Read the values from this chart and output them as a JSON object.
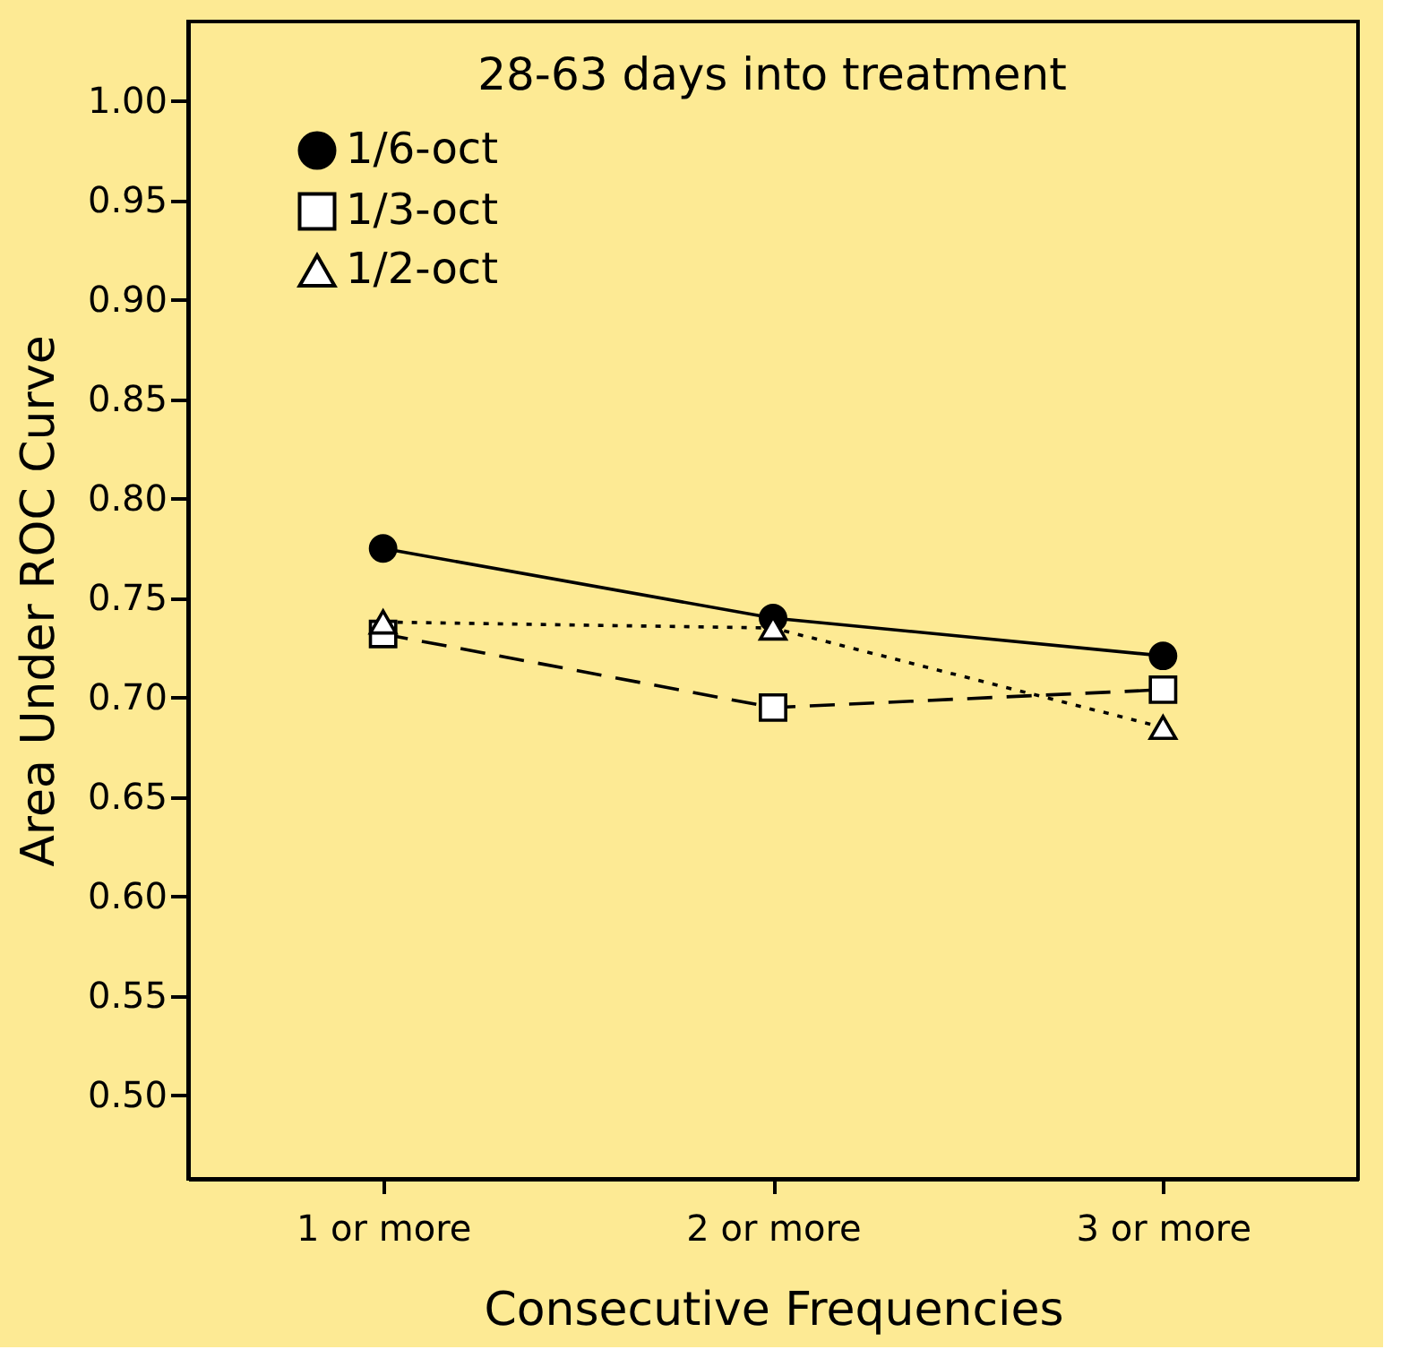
{
  "chart_data": {
    "type": "line",
    "title": "28-63 days into treatment",
    "xlabel": "Consecutive Frequencies",
    "ylabel": "Area Under ROC Curve",
    "categories": [
      "1 or more",
      "2 or more",
      "3 or more"
    ],
    "series": [
      {
        "name": "1/6-oct",
        "color": "#000000",
        "values": [
          0.775,
          0.74,
          0.721
        ],
        "marker": "circle",
        "line_style": "solid"
      },
      {
        "name": "1/3-oct",
        "color": "#000000",
        "values": [
          0.732,
          0.695,
          0.704
        ],
        "marker": "square",
        "line_style": "dashed"
      },
      {
        "name": "1/2-oct",
        "color": "#000000",
        "values": [
          0.738,
          0.735,
          0.685
        ],
        "marker": "triangle",
        "line_style": "dotted"
      }
    ],
    "ylim": [
      0.458,
      1.04
    ],
    "yticks": [
      {
        "value": 0.5,
        "label": "0.50"
      },
      0.55,
      {
        "value": 0.6,
        "label": "0.60"
      },
      0.65,
      {
        "value": 0.7,
        "label": "0.70"
      },
      0.75,
      {
        "value": 0.8,
        "label": "0.80"
      },
      0.85,
      {
        "value": 0.9,
        "label": "0.90"
      },
      0.95,
      {
        "value": 1.0,
        "label": "1.00"
      }
    ],
    "grid": false,
    "legend": "top left"
  }
}
